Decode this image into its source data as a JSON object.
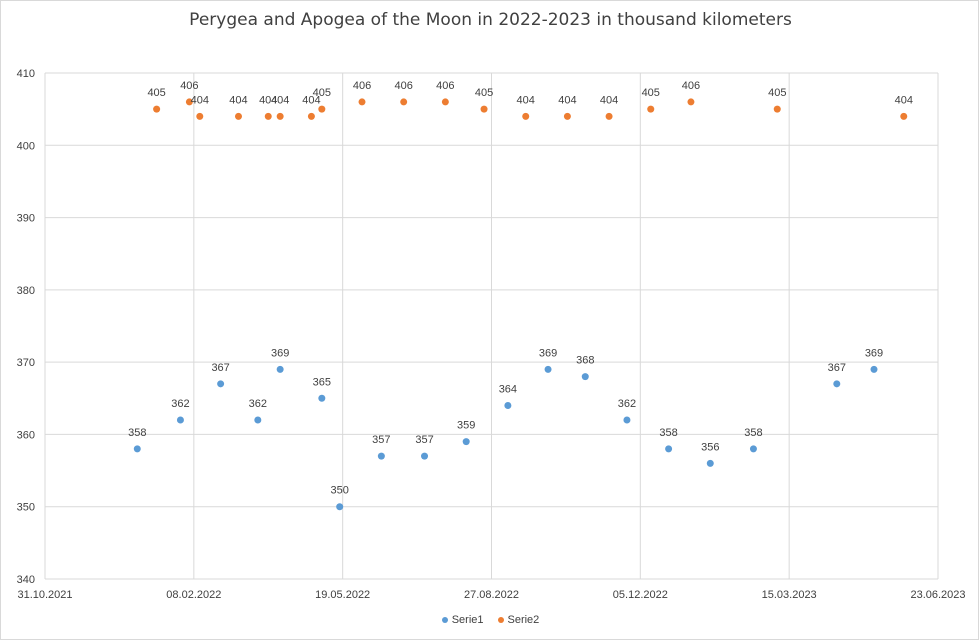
{
  "chart_data": {
    "type": "scatter",
    "title": "Perygea and Apogea of the Moon in 2022-2023 in thousand kilometers",
    "xlabel": "",
    "ylabel": "",
    "xlim": [
      "2021-10-31",
      "2023-06-23"
    ],
    "ylim": [
      340,
      410
    ],
    "x_ticks": [
      "31.10.2021",
      "08.02.2022",
      "19.05.2022",
      "27.08.2022",
      "05.12.2022",
      "15.03.2023",
      "23.06.2023"
    ],
    "y_ticks": [
      340,
      350,
      360,
      370,
      380,
      390,
      400,
      410
    ],
    "grid": true,
    "legend_position": "bottom",
    "series": [
      {
        "name": "Serie1",
        "color": "#5b9bd5",
        "points": [
          {
            "x": "2022-01-01",
            "y": 358
          },
          {
            "x": "2022-01-30",
            "y": 362
          },
          {
            "x": "2022-02-26",
            "y": 367
          },
          {
            "x": "2022-03-23",
            "y": 362
          },
          {
            "x": "2022-04-07",
            "y": 369
          },
          {
            "x": "2022-05-05",
            "y": 365
          },
          {
            "x": "2022-05-17",
            "y": 350
          },
          {
            "x": "2022-06-14",
            "y": 357
          },
          {
            "x": "2022-07-13",
            "y": 357
          },
          {
            "x": "2022-08-10",
            "y": 359
          },
          {
            "x": "2022-09-07",
            "y": 364
          },
          {
            "x": "2022-10-04",
            "y": 369
          },
          {
            "x": "2022-10-29",
            "y": 368
          },
          {
            "x": "2022-11-26",
            "y": 362
          },
          {
            "x": "2022-12-24",
            "y": 358
          },
          {
            "x": "2023-01-21",
            "y": 356
          },
          {
            "x": "2023-02-19",
            "y": 358
          },
          {
            "x": "2023-04-16",
            "y": 367
          },
          {
            "x": "2023-05-11",
            "y": 369
          }
        ]
      },
      {
        "name": "Serie2",
        "color": "#ed7d31",
        "points": [
          {
            "x": "2022-01-14",
            "y": 405
          },
          {
            "x": "2022-02-05",
            "y": 406
          },
          {
            "x": "2022-02-12",
            "y": 404
          },
          {
            "x": "2022-03-10",
            "y": 404
          },
          {
            "x": "2022-03-30",
            "y": 404
          },
          {
            "x": "2022-04-07",
            "y": 404
          },
          {
            "x": "2022-04-28",
            "y": 404
          },
          {
            "x": "2022-05-05",
            "y": 405
          },
          {
            "x": "2022-06-01",
            "y": 406
          },
          {
            "x": "2022-06-29",
            "y": 406
          },
          {
            "x": "2022-07-27",
            "y": 406
          },
          {
            "x": "2022-08-22",
            "y": 405
          },
          {
            "x": "2022-09-19",
            "y": 404
          },
          {
            "x": "2022-10-17",
            "y": 404
          },
          {
            "x": "2022-11-14",
            "y": 404
          },
          {
            "x": "2022-12-12",
            "y": 405
          },
          {
            "x": "2023-01-08",
            "y": 406
          },
          {
            "x": "2023-03-07",
            "y": 405
          },
          {
            "x": "2023-05-31",
            "y": 404
          }
        ]
      }
    ]
  }
}
